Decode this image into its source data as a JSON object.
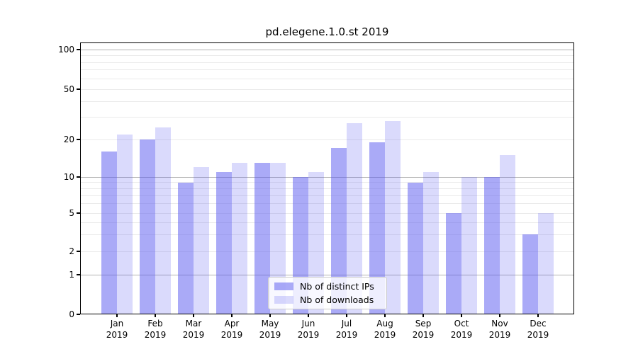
{
  "chart_data": {
    "type": "bar",
    "title": "pd.elegene.1.0.st 2019",
    "yscale": "symlog",
    "ylim": [
      0,
      112
    ],
    "grid": "horizontal",
    "legend_position": "lower center",
    "categories": [
      "Jan 2019",
      "Feb 2019",
      "Mar 2019",
      "Apr 2019",
      "May 2019",
      "Jun 2019",
      "Jul 2019",
      "Aug 2019",
      "Sep 2019",
      "Oct 2019",
      "Nov 2019",
      "Dec 2019"
    ],
    "series": [
      {
        "id": "distinct-ips",
        "name": "Nb of distinct IPs",
        "fill": "rgba(85,85,240,0.5)",
        "color_on_white": "#aaaaf7",
        "values": [
          16,
          20,
          9,
          11,
          13,
          10,
          17,
          19,
          9,
          5,
          10,
          3
        ]
      },
      {
        "id": "downloads",
        "name": "Nb of downloads",
        "fill": "rgba(85,85,240,0.22)",
        "color_on_white": "#d9d9fb",
        "values": [
          22,
          25,
          12,
          13,
          13,
          11,
          27,
          28,
          11,
          10,
          15,
          5
        ]
      }
    ],
    "yticks": [
      0,
      1,
      2,
      5,
      10,
      20,
      50,
      100
    ],
    "gridlines": {
      "major": [
        1,
        10,
        100
      ],
      "minor": [
        2,
        3,
        4,
        5,
        6,
        7,
        8,
        9,
        20,
        30,
        40,
        50,
        60,
        70,
        80,
        90
      ]
    },
    "colors": {
      "major_grid": "#b2b2b2",
      "minor_grid": "#eaeaea",
      "axis": "#000000",
      "legend_border": "#cccccc"
    }
  }
}
